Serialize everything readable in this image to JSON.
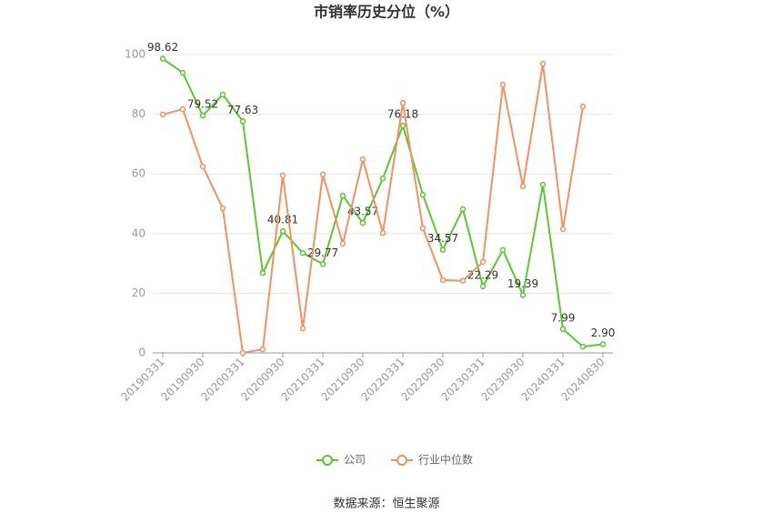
{
  "chart_data": {
    "type": "line",
    "title": "市销率历史分位（%）",
    "categories": [
      "20190331",
      null,
      "20190930",
      null,
      "20200331",
      null,
      "20200930",
      null,
      "20210331",
      null,
      "20210930",
      null,
      "20220331",
      null,
      "20220930",
      null,
      "20230331",
      null,
      "20230930",
      null,
      "20240331",
      null,
      "20240830"
    ],
    "series": [
      {
        "name": "公司",
        "color": "#5cc72f",
        "values": [
          98.62,
          93.9,
          79.52,
          86.6,
          77.63,
          26.8,
          40.81,
          33.5,
          29.77,
          52.7,
          43.57,
          58.5,
          76.18,
          53.0,
          34.57,
          48.2,
          22.29,
          34.5,
          19.39,
          56.4,
          7.99,
          2.1,
          2.9
        ],
        "value_labels": [
          "98.62",
          null,
          "79.52",
          null,
          "77.63",
          null,
          "40.81",
          null,
          "29.77",
          null,
          "43.57",
          null,
          "76.18",
          null,
          "34.57",
          null,
          "22.29",
          null,
          "19.39",
          null,
          "7.99",
          null,
          "2.90"
        ]
      },
      {
        "name": "行业中位数",
        "color": "#f4915f",
        "values": [
          79.9,
          81.7,
          62.5,
          48.5,
          0,
          1.2,
          59.5,
          8.2,
          59.8,
          36.6,
          64.9,
          40.2,
          83.8,
          41.8,
          24.4,
          24.2,
          30.5,
          89.9,
          55.8,
          96.9,
          41.5,
          82.6,
          null
        ]
      }
    ],
    "ylim": [
      0,
      100
    ],
    "yticks": [
      0,
      20,
      40,
      60,
      80,
      100
    ],
    "grid": true,
    "legend": "bottom",
    "source": "数据来源：恒生聚源"
  }
}
